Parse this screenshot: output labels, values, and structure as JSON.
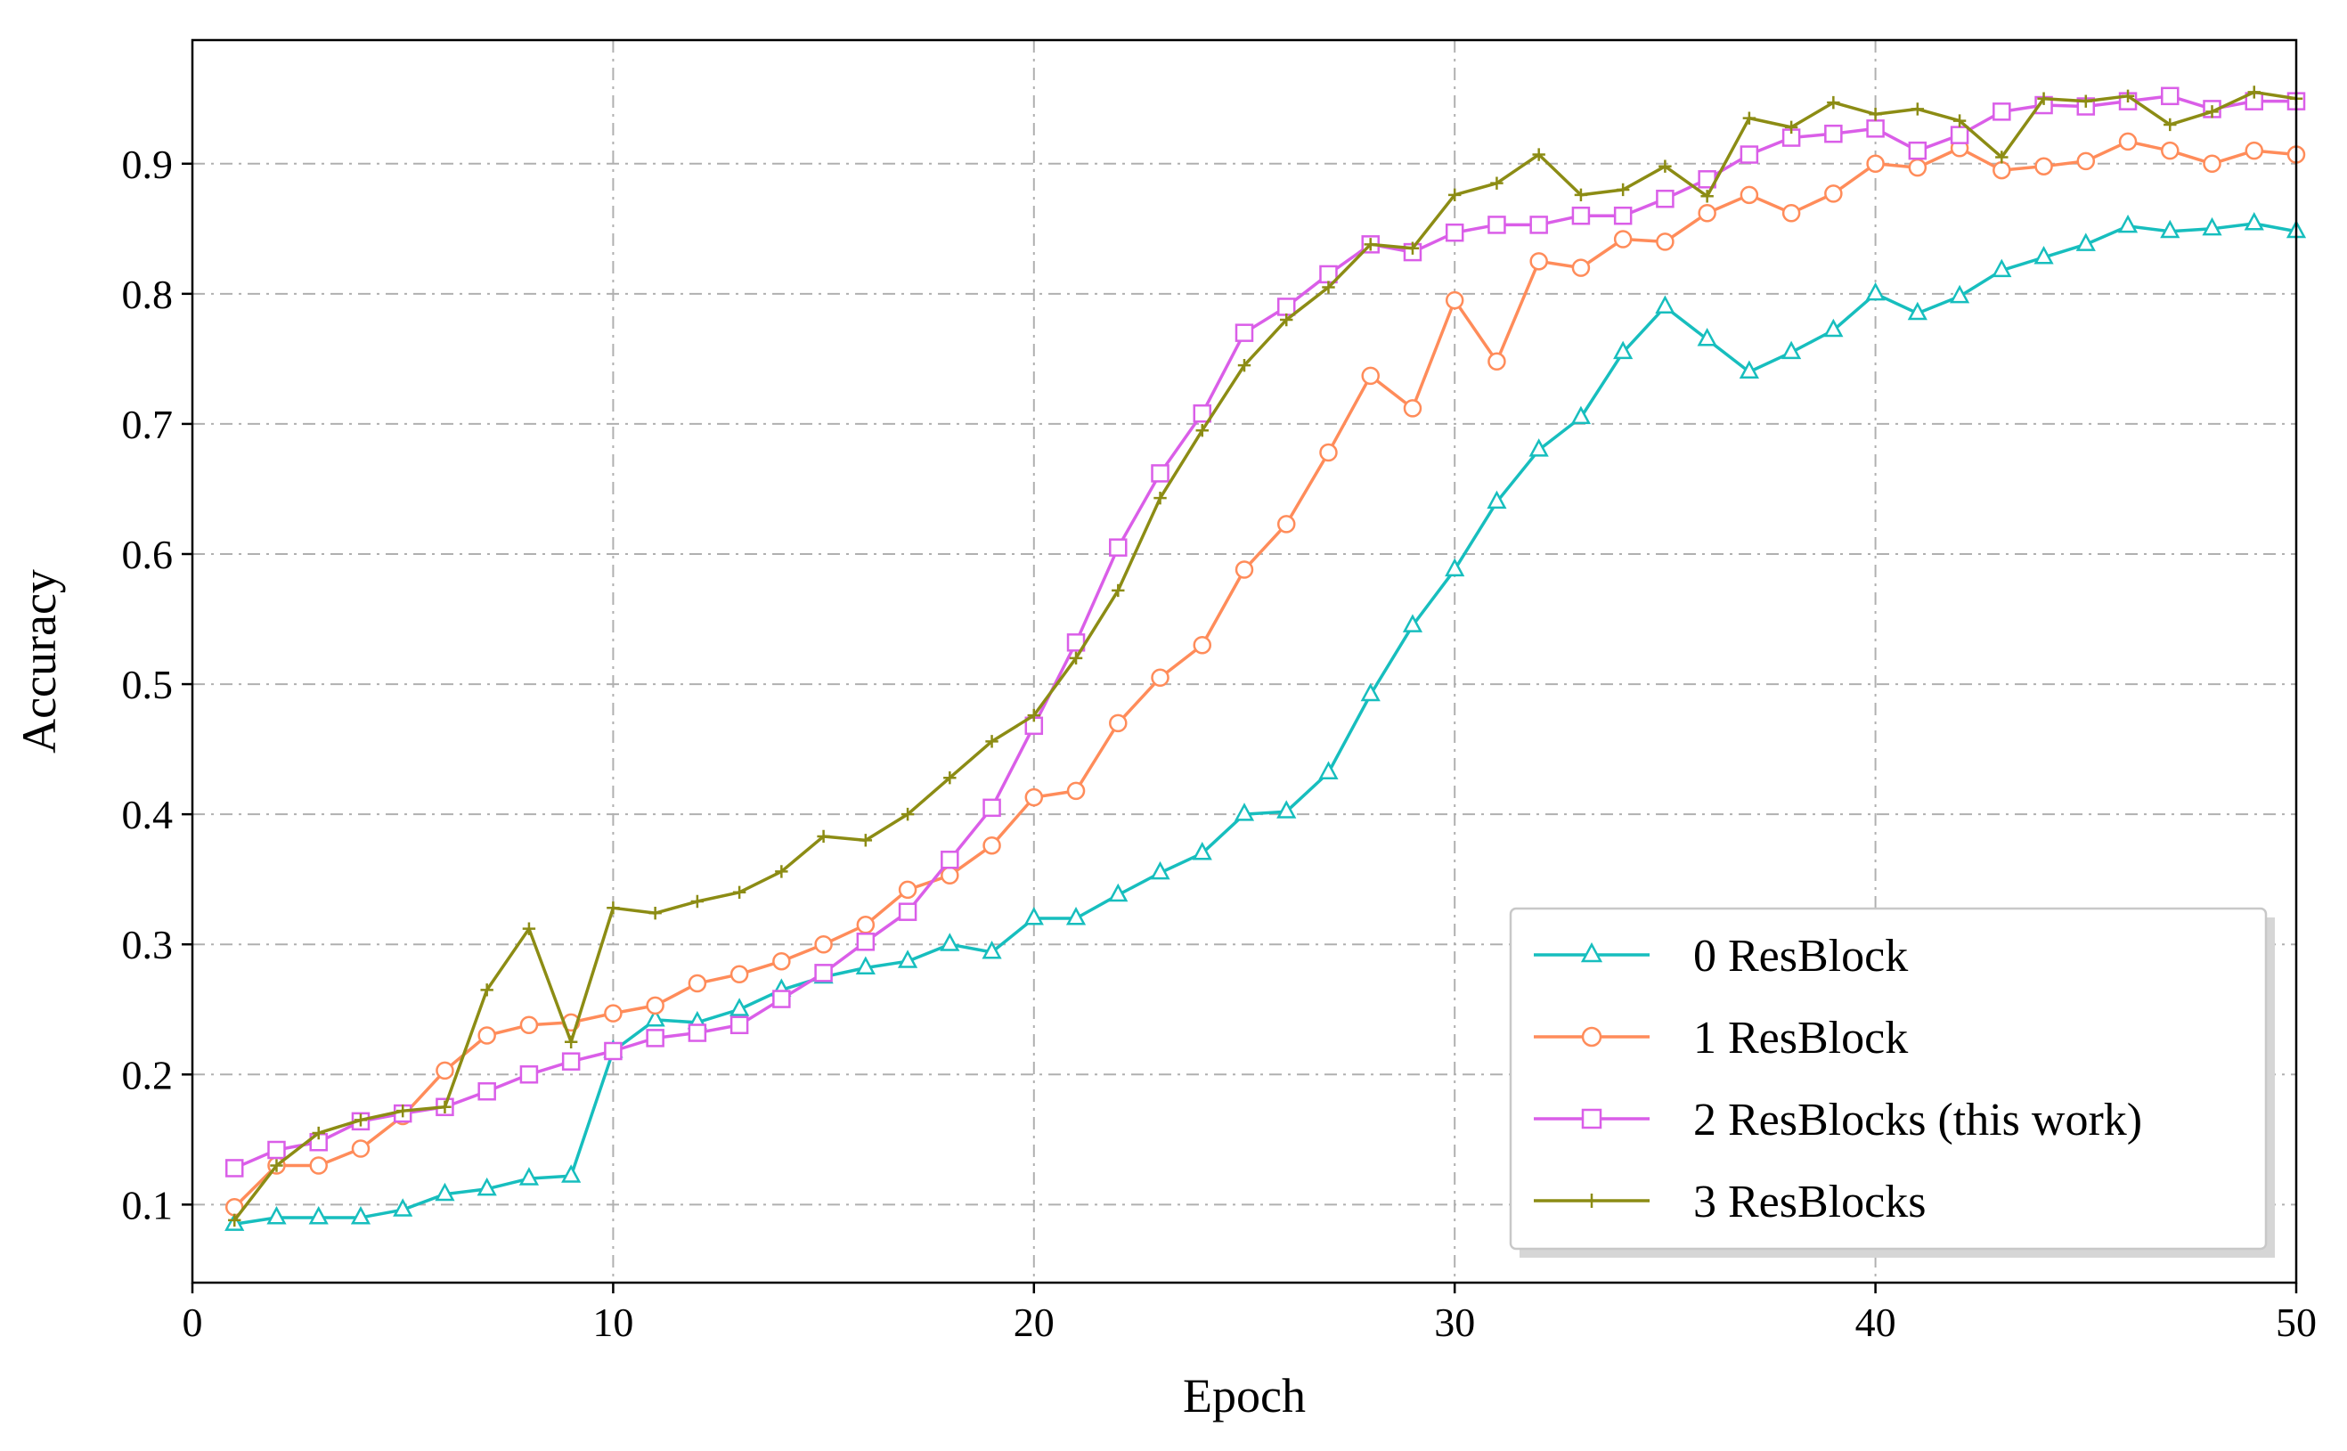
{
  "chart_data": {
    "type": "line",
    "xlabel": "Epoch",
    "ylabel": "Accuracy",
    "xlim": [
      0,
      50
    ],
    "ylim": [
      0.04,
      0.995
    ],
    "xticks": [
      0,
      10,
      20,
      30,
      40,
      50
    ],
    "yticks": [
      0.1,
      0.2,
      0.3,
      0.4,
      0.5,
      0.6,
      0.7,
      0.8,
      0.9
    ],
    "grid": true,
    "legend_position": "bottom-right",
    "x": [
      1,
      2,
      3,
      4,
      5,
      6,
      7,
      8,
      9,
      10,
      11,
      12,
      13,
      14,
      15,
      16,
      17,
      18,
      19,
      20,
      21,
      22,
      23,
      24,
      25,
      26,
      27,
      28,
      29,
      30,
      31,
      32,
      33,
      34,
      35,
      36,
      37,
      38,
      39,
      40,
      41,
      42,
      43,
      44,
      45,
      46,
      47,
      48,
      49,
      50
    ],
    "series": [
      {
        "name": "0 ResBlock",
        "color": "#17bebe",
        "marker": "triangle",
        "values": [
          0.085,
          0.09,
          0.09,
          0.09,
          0.096,
          0.108,
          0.112,
          0.12,
          0.122,
          0.218,
          0.242,
          0.24,
          0.25,
          0.265,
          0.275,
          0.282,
          0.287,
          0.3,
          0.294,
          0.32,
          0.32,
          0.338,
          0.355,
          0.37,
          0.4,
          0.402,
          0.432,
          0.492,
          0.545,
          0.588,
          0.64,
          0.68,
          0.705,
          0.755,
          0.79,
          0.765,
          0.74,
          0.755,
          0.772,
          0.8,
          0.785,
          0.798,
          0.818,
          0.828,
          0.838,
          0.852,
          0.848,
          0.85,
          0.854,
          0.848
        ]
      },
      {
        "name": "1 ResBlock",
        "color": "#ff8c5a",
        "marker": "circle",
        "values": [
          0.098,
          0.13,
          0.13,
          0.143,
          0.168,
          0.203,
          0.23,
          0.238,
          0.24,
          0.247,
          0.253,
          0.27,
          0.277,
          0.287,
          0.3,
          0.315,
          0.342,
          0.353,
          0.376,
          0.413,
          0.418,
          0.47,
          0.505,
          0.53,
          0.588,
          0.623,
          0.678,
          0.737,
          0.712,
          0.795,
          0.748,
          0.825,
          0.82,
          0.842,
          0.84,
          0.862,
          0.876,
          0.862,
          0.877,
          0.9,
          0.897,
          0.912,
          0.895,
          0.898,
          0.902,
          0.917,
          0.91,
          0.9,
          0.91,
          0.907
        ]
      },
      {
        "name": "2 ResBlocks (this work)",
        "color": "#da5ee8",
        "marker": "square",
        "values": [
          0.128,
          0.142,
          0.148,
          0.164,
          0.17,
          0.175,
          0.187,
          0.2,
          0.21,
          0.218,
          0.228,
          0.232,
          0.238,
          0.258,
          0.278,
          0.302,
          0.325,
          0.365,
          0.405,
          0.468,
          0.532,
          0.605,
          0.662,
          0.708,
          0.77,
          0.79,
          0.815,
          0.838,
          0.832,
          0.847,
          0.853,
          0.853,
          0.86,
          0.86,
          0.873,
          0.888,
          0.907,
          0.92,
          0.923,
          0.927,
          0.91,
          0.922,
          0.94,
          0.945,
          0.944,
          0.948,
          0.952,
          0.942,
          0.948,
          0.948
        ]
      },
      {
        "name": "3 ResBlocks",
        "color": "#8c8c14",
        "marker": "plus",
        "values": [
          0.088,
          0.13,
          0.155,
          0.165,
          0.172,
          0.175,
          0.265,
          0.312,
          0.225,
          0.328,
          0.324,
          0.333,
          0.34,
          0.356,
          0.383,
          0.38,
          0.4,
          0.428,
          0.456,
          0.476,
          0.52,
          0.572,
          0.643,
          0.695,
          0.745,
          0.78,
          0.805,
          0.838,
          0.835,
          0.876,
          0.885,
          0.907,
          0.876,
          0.88,
          0.898,
          0.875,
          0.935,
          0.928,
          0.947,
          0.938,
          0.942,
          0.933,
          0.905,
          0.95,
          0.948,
          0.952,
          0.93,
          0.94,
          0.955,
          0.95
        ]
      }
    ]
  }
}
